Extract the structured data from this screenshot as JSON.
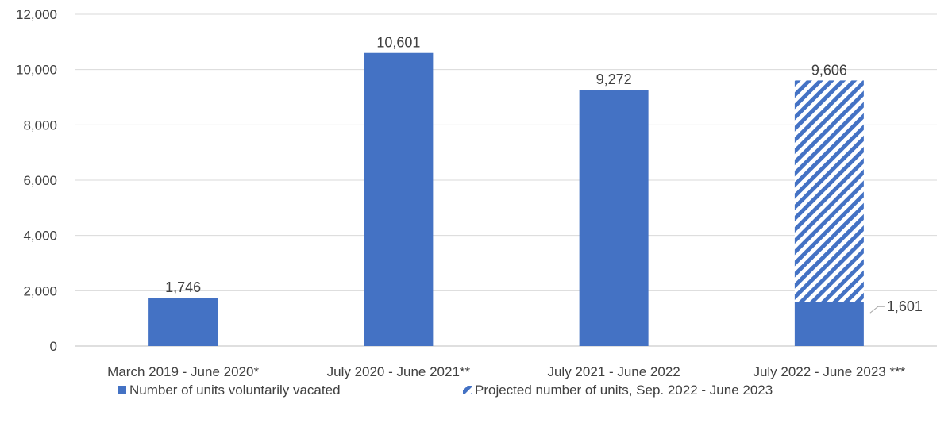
{
  "chart_data": {
    "type": "bar",
    "categories": [
      "March 2019 - June 2020*",
      "July 2020 - June 2021**",
      "July 2021 - June 2022",
      "July 2022 - June 2023 ***"
    ],
    "series": [
      {
        "name": "Number of units voluntarily vacated",
        "values": [
          1746,
          10601,
          9272,
          1601
        ],
        "labels": [
          "1,746",
          "10,601",
          "9,272",
          "1,601"
        ],
        "color": "#4472C4",
        "pattern": "solid"
      },
      {
        "name": "Projected number of units, Sep. 2022 - June 2023",
        "values": [
          null,
          null,
          null,
          8005
        ],
        "color": "#4472C4",
        "pattern": "diagonal-stripes"
      }
    ],
    "stack_total_labels": [
      "",
      "",
      "",
      "9,606"
    ],
    "stack_totals": [
      null,
      null,
      null,
      9606
    ],
    "ylim": [
      0,
      12000
    ],
    "yticks": [
      0,
      2000,
      4000,
      6000,
      8000,
      10000,
      12000
    ],
    "ytick_labels": [
      "0",
      "2,000",
      "4,000",
      "6,000",
      "8,000",
      "10,000",
      "12,000"
    ],
    "grid": true,
    "legend_position": "bottom"
  }
}
